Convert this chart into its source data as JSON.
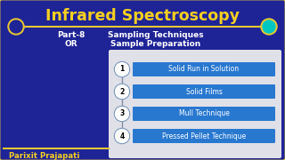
{
  "title": "Infrared Spectroscopy",
  "subtitle_line1_bold": "Part-8",
  "subtitle_line1_regular": "Sampling Techniques",
  "subtitle_line2_bold": "OR",
  "subtitle_line2_regular": "Sample Preparation",
  "items": [
    "Solid Run in Solution",
    "Solid Films",
    "Mull Technique",
    "Pressed Pellet Technique"
  ],
  "bg_color": "#1e2396",
  "header_bg_color": "#1e2396",
  "header_border_color": "#e8c832",
  "title_color": "#f5d020",
  "subtitle_color": "#ffffff",
  "item_box_color": "#2878d0",
  "item_text_color": "#ffffff",
  "panel_bg": "#e0e0e8",
  "circle_border_color": "#7090b8",
  "circle_fill_color": "#ffffff",
  "circle_text_color": "#000000",
  "connector_color": "#8090a8",
  "name_text": "Parixit Prajapati",
  "name_color": "#f5d020",
  "name_bar_color": "#e8c832",
  "left_circle_fill": "#1e2396",
  "left_circle_border": "#e8c832",
  "right_circle_fill": "#00c8c0",
  "right_circle_border": "#e8c832",
  "person_area_color": "#2030a8"
}
